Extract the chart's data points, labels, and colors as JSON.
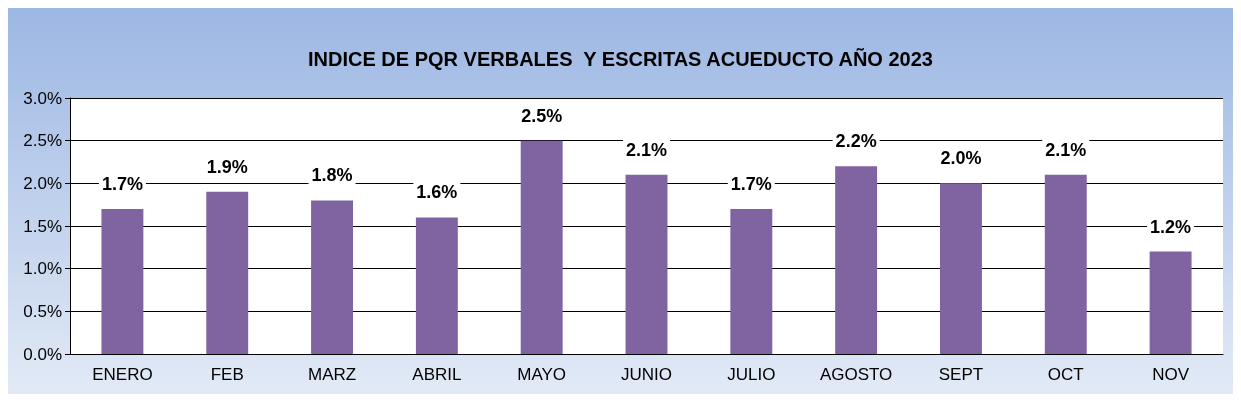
{
  "chart_data": {
    "type": "bar",
    "title": "INDICE DE PQR VERBALES  Y ESCRITAS ACUEDUCTO AÑO 2023",
    "categories": [
      "ENERO",
      "FEB",
      "MARZ",
      "ABRIL",
      "MAYO",
      "JUNIO",
      "JULIO",
      "AGOSTO",
      "SEPT",
      "OCT",
      "NOV"
    ],
    "values": [
      1.7,
      1.9,
      1.8,
      1.6,
      2.5,
      2.1,
      1.7,
      2.2,
      2.0,
      2.1,
      1.2
    ],
    "value_labels": [
      "1.7%",
      "1.9%",
      "1.8%",
      "1.6%",
      "2.5%",
      "2.1%",
      "1.7%",
      "2.2%",
      "2.0%",
      "2.1%",
      "1.2%"
    ],
    "color": "#8064a2",
    "ylim": [
      0,
      3
    ],
    "yticks": [
      {
        "value": 0,
        "label": "0.0%"
      },
      {
        "value": 0.5,
        "label": "0.5%"
      },
      {
        "value": 1,
        "label": "1.0%"
      },
      {
        "value": 1.5,
        "label": "1.5%"
      },
      {
        "value": 2,
        "label": "2.0%"
      },
      {
        "value": 2.5,
        "label": "2.5%"
      },
      {
        "value": 3,
        "label": "3.0%"
      }
    ],
    "grid": "y"
  }
}
